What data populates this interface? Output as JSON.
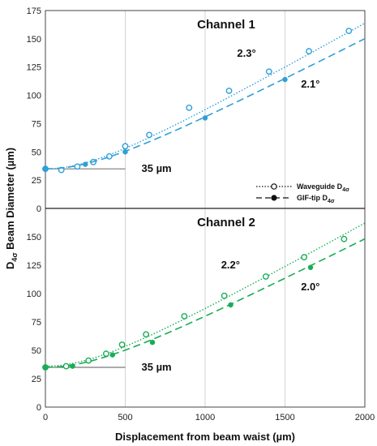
{
  "chart_data": {
    "type": "scatter",
    "xlabel": "Displacement from beam waist (µm)",
    "ylabel_main": "D",
    "ylabel_sub": "4σ",
    "ylabel_rest": " Beam Diameter (µm)",
    "xlim": [
      0,
      2000
    ],
    "x_ticks": [
      0,
      500,
      1000,
      1500,
      2000
    ],
    "grid": "vertical",
    "legend": {
      "position": "between-panels-right",
      "entries": [
        {
          "main": "Waveguide D",
          "sub": "4σ",
          "marker": "open-circle",
          "line": "dotted"
        },
        {
          "main": "GIF-tip D",
          "sub": "4σ",
          "marker": "filled-circle",
          "line": "dashed"
        }
      ]
    },
    "panels": [
      {
        "title": "Channel 1",
        "color": "#2e9fd9",
        "ylim": [
          0,
          175
        ],
        "y_ticks": [
          0,
          25,
          50,
          75,
          100,
          125,
          150,
          175
        ],
        "waist_label": "35 µm",
        "waist_value": 35,
        "series": [
          {
            "name": "Waveguide",
            "marker": "open",
            "line": "dotted",
            "angle_label": "2.3°",
            "angle_at": [
              1200,
              134
            ],
            "fit": {
              "d0": 35,
              "theta_mrad": 80
            },
            "x": [
              0,
              100,
              200,
              300,
              400,
              500,
              650,
              900,
              1150,
              1400,
              1650,
              1900
            ],
            "y": [
              35,
              34,
              37,
              41,
              46,
              55,
              65,
              89,
              104,
              121,
              139,
              157
            ]
          },
          {
            "name": "GIF-tip",
            "marker": "filled",
            "line": "dashed",
            "angle_label": "2.1°",
            "angle_at": [
              1600,
              107
            ],
            "fit": {
              "d0": 35,
              "theta_mrad": 73
            },
            "x": [
              0,
              250,
              500,
              1000,
              1500
            ],
            "y": [
              35,
              39,
              50,
              80,
              114
            ]
          }
        ]
      },
      {
        "title": "Channel 2",
        "color": "#18ad55",
        "ylim": [
          0,
          175
        ],
        "y_ticks": [
          0,
          25,
          50,
          75,
          100,
          125,
          150
        ],
        "waist_label": "35 µm",
        "waist_value": 35,
        "series": [
          {
            "name": "Waveguide",
            "marker": "open",
            "line": "dotted",
            "angle_label": "2.2°",
            "angle_at": [
              1100,
              122
            ],
            "fit": {
              "d0": 36,
              "theta_mrad": 79
            },
            "x": [
              0,
              130,
              270,
              380,
              480,
              630,
              870,
              1120,
              1380,
              1620,
              1870
            ],
            "y": [
              35,
              36,
              41,
              47,
              55,
              64,
              80,
              98,
              115,
              132,
              148
            ]
          },
          {
            "name": "GIF-tip",
            "marker": "filled",
            "line": "dashed",
            "angle_label": "2.0°",
            "angle_at": [
              1600,
              103
            ],
            "fit": {
              "d0": 35,
              "theta_mrad": 72
            },
            "x": [
              0,
              170,
              420,
              670,
              1160,
              1660
            ],
            "y": [
              35,
              36,
              46,
              57,
              90,
              123
            ]
          }
        ]
      }
    ]
  }
}
